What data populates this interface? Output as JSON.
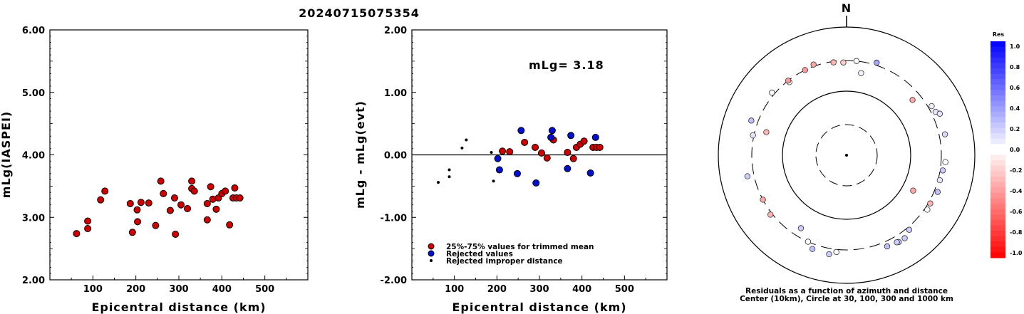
{
  "event_id": "20240715075354",
  "chart_data": [
    {
      "type": "scatter",
      "title": "",
      "xlabel": "Epicentral distance (km)",
      "ylabel": "mLg(IASPEI)",
      "xlim": [
        0,
        600
      ],
      "ylim": [
        2.0,
        6.0
      ],
      "xticks": [
        "100",
        "200",
        "300",
        "400",
        "500"
      ],
      "yticks": [
        "2.00",
        "3.00",
        "4.00",
        "5.00",
        "6.00"
      ],
      "series": [
        {
          "color": "#d10000",
          "points": [
            [
              62,
              2.74
            ],
            [
              88,
              2.94
            ],
            [
              88,
              2.82
            ],
            [
              118,
              3.28
            ],
            [
              128,
              3.42
            ],
            [
              187,
              3.22
            ],
            [
              192,
              2.76
            ],
            [
              203,
              3.12
            ],
            [
              204,
              2.93
            ],
            [
              212,
              3.24
            ],
            [
              230,
              3.23
            ],
            [
              246,
              2.87
            ],
            [
              258,
              3.58
            ],
            [
              264,
              3.38
            ],
            [
              280,
              3.11
            ],
            [
              290,
              3.31
            ],
            [
              292,
              2.73
            ],
            [
              305,
              3.2
            ],
            [
              320,
              3.14
            ],
            [
              330,
              3.58
            ],
            [
              330,
              3.46
            ],
            [
              336,
              3.42
            ],
            [
              366,
              3.22
            ],
            [
              366,
              2.96
            ],
            [
              374,
              3.49
            ],
            [
              379,
              3.29
            ],
            [
              387,
              3.13
            ],
            [
              392,
              3.31
            ],
            [
              400,
              3.38
            ],
            [
              408,
              3.42
            ],
            [
              418,
              2.88
            ],
            [
              426,
              3.31
            ],
            [
              430,
              3.47
            ],
            [
              434,
              3.31
            ],
            [
              442,
              3.31
            ]
          ]
        }
      ]
    },
    {
      "type": "scatter",
      "title": "",
      "xlabel": "Epicentral distance (km)",
      "ylabel": "mLg - mLg(evt)",
      "annotation": "mLg= 3.18",
      "xlim": [
        0,
        600
      ],
      "ylim": [
        -2.0,
        2.0
      ],
      "xticks": [
        "100",
        "200",
        "300",
        "400",
        "500"
      ],
      "yticks": [
        "-2.00",
        "-1.00",
        "0.00",
        "1.00",
        "2.00"
      ],
      "legend": [
        {
          "label": "25%-75% values for trimmed mean",
          "color": "#d10000"
        },
        {
          "label": "Rejected values",
          "color": "#0010d0"
        },
        {
          "label": "Rejected improper distance",
          "color": "#000000"
        }
      ],
      "series": [
        {
          "name": "25%-75% values for trimmed mean",
          "color": "#d10000",
          "points": [
            [
              213,
              0.06
            ],
            [
              230,
              0.05
            ],
            [
              265,
              0.2
            ],
            [
              290,
              0.12
            ],
            [
              305,
              0.03
            ],
            [
              318,
              -0.05
            ],
            [
              333,
              0.24
            ],
            [
              366,
              0.04
            ],
            [
              380,
              -0.06
            ],
            [
              387,
              0.12
            ],
            [
              396,
              0.17
            ],
            [
              405,
              0.22
            ],
            [
              426,
              0.12
            ],
            [
              434,
              0.12
            ],
            [
              442,
              0.12
            ]
          ]
        },
        {
          "name": "Rejected values",
          "color": "#0010d0",
          "points": [
            [
              202,
              -0.06
            ],
            [
              206,
              -0.24
            ],
            [
              248,
              -0.3
            ],
            [
              257,
              0.39
            ],
            [
              292,
              -0.45
            ],
            [
              327,
              0.28
            ],
            [
              330,
              0.39
            ],
            [
              366,
              -0.22
            ],
            [
              374,
              0.31
            ],
            [
              420,
              -0.29
            ],
            [
              432,
              0.28
            ]
          ]
        },
        {
          "name": "Rejected improper distance",
          "color": "#000000",
          "points": [
            [
              62,
              -0.44
            ],
            [
              88,
              -0.24
            ],
            [
              88,
              -0.35
            ],
            [
              118,
              0.11
            ],
            [
              128,
              0.24
            ],
            [
              187,
              0.04
            ],
            [
              192,
              -0.42
            ]
          ]
        }
      ]
    }
  ],
  "polar": {
    "north_label": "N",
    "caption_line1": "Residuals as a function of azimuth and distance",
    "caption_line2": "Center (10km), Circle at 30, 100, 300 and 1000 km",
    "colorbar_title": "Res",
    "colorbar_ticks": [
      "1.0",
      "0.8",
      "0.6",
      "0.4",
      "0.2",
      "0.0",
      "-0.2",
      "-0.4",
      "-0.6",
      "-0.8",
      "-1.0"
    ],
    "stations": [
      {
        "azimuth": 6,
        "distance": 300,
        "residual": 0.0
      },
      {
        "azimuth": 18,
        "distance": 330,
        "residual": 0.35
      },
      {
        "azimuth": -2,
        "distance": 280,
        "residual": -0.2
      },
      {
        "azimuth": -8,
        "distance": 290,
        "residual": -0.3
      },
      {
        "azimuth": -26,
        "distance": 300,
        "residual": -0.4
      },
      {
        "azimuth": -38,
        "distance": 280,
        "residual": 0.0
      },
      {
        "azimuth": 10,
        "distance": 200,
        "residual": 0.05
      },
      {
        "azimuth": 50,
        "distance": 220,
        "residual": -0.35
      },
      {
        "azimuth": 118,
        "distance": 150,
        "residual": -0.35
      },
      {
        "azimuth": 60,
        "distance": 340,
        "residual": 0.05
      },
      {
        "azimuth": 64,
        "distance": 350,
        "residual": 0.1
      },
      {
        "azimuth": 66,
        "distance": 390,
        "residual": 0.1
      },
      {
        "azimuth": 78,
        "distance": 370,
        "residual": 0.15
      },
      {
        "azimuth": 94,
        "distance": 350,
        "residual": 0.0
      },
      {
        "azimuth": 99,
        "distance": 330,
        "residual": 0.2
      },
      {
        "azimuth": 105,
        "distance": 320,
        "residual": 0.1
      },
      {
        "azimuth": 112,
        "distance": 340,
        "residual": 0.25
      },
      {
        "azimuth": 120,
        "distance": 320,
        "residual": -0.3
      },
      {
        "azimuth": 124,
        "distance": 330,
        "residual": 0.0
      },
      {
        "azimuth": 140,
        "distance": 330,
        "residual": 0.2
      },
      {
        "azimuth": 145,
        "distance": 380,
        "residual": 0.2
      },
      {
        "azimuth": 149,
        "distance": 380,
        "residual": 0.25
      },
      {
        "azimuth": 150,
        "distance": 370,
        "residual": 0.2
      },
      {
        "azimuth": 156,
        "distance": 360,
        "residual": 0.25
      },
      {
        "azimuth": 186,
        "distance": 330,
        "residual": 0.0
      },
      {
        "azimuth": 190,
        "distance": 370,
        "residual": 0.2
      },
      {
        "azimuth": 200,
        "distance": 360,
        "residual": 0.25
      },
      {
        "azimuth": 204,
        "distance": 300,
        "residual": 0.0
      },
      {
        "azimuth": 212,
        "distance": 220,
        "residual": 0.2
      },
      {
        "azimuth": 242,
        "distance": 300,
        "residual": -0.35
      },
      {
        "azimuth": 232,
        "distance": 320,
        "residual": -0.3
      },
      {
        "azimuth": 258,
        "distance": 380,
        "residual": 0.2
      },
      {
        "azimuth": 282,
        "distance": 310,
        "residual": 0.1
      },
      {
        "azimuth": 290,
        "distance": 380,
        "residual": 0.25
      },
      {
        "azimuth": 286,
        "distance": 200,
        "residual": -0.3
      },
      {
        "azimuth": 310,
        "distance": 330,
        "residual": 0.0
      },
      {
        "azimuth": 322,
        "distance": 300,
        "residual": -0.4
      },
      {
        "azimuth": 340,
        "distance": 320,
        "residual": -0.35
      }
    ]
  },
  "colors": {
    "red": "#d10000",
    "blue": "#0010d0",
    "black": "#000000"
  }
}
